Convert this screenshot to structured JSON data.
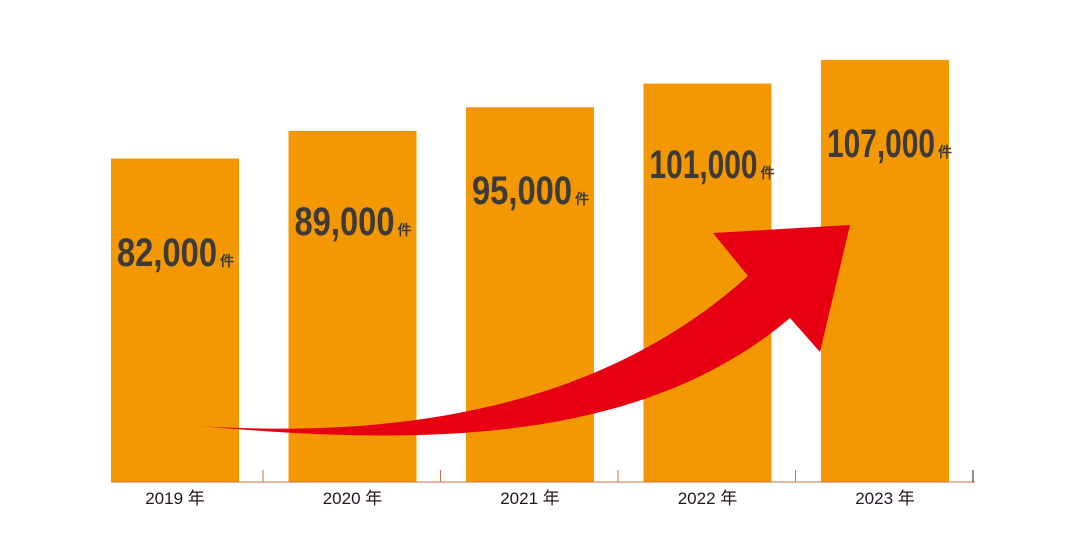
{
  "chart_data": {
    "type": "bar",
    "categories": [
      "2019 年",
      "2020 年",
      "2021 年",
      "2022 年",
      "2023 年"
    ],
    "values": [
      82000,
      89000,
      95000,
      101000,
      107000
    ],
    "value_labels": [
      "82,000",
      "89,000",
      "95,000",
      "101,000",
      "107,000"
    ],
    "value_unit": "件",
    "title": "",
    "xlabel": "",
    "ylabel": "",
    "ylim": [
      0,
      110000
    ],
    "grid": false,
    "legend": "none",
    "annotation": "red upward-curving arrow indicating growth trend"
  },
  "colors": {
    "bar": "#F39800",
    "label_text": "#3E3A39",
    "arrow": "#E60012",
    "axis": "#C7704A",
    "tick_text": "#231815"
  }
}
